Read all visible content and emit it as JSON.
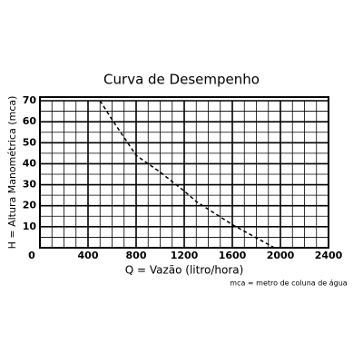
{
  "chart_data": {
    "type": "line",
    "title": "Curva de Desempenho",
    "x_label": "Q = Vazão (litro/hora)",
    "y_label": "H = Altura Manométrica (mca)",
    "note": "mca = metro de coluna de água",
    "x": [
      500,
      600,
      800,
      1000,
      1200,
      1300,
      1600,
      1950
    ],
    "series": [
      {
        "values": [
          70,
          61,
          44,
          36,
          27,
          22,
          11,
          0
        ],
        "color": "#000000"
      }
    ],
    "xlim": [
      0,
      2400
    ],
    "xticks": [
      0,
      400,
      800,
      1200,
      1600,
      2000,
      2400
    ],
    "ylim": [
      0,
      70
    ],
    "yticks": [
      0,
      10,
      20,
      30,
      40,
      50,
      60,
      70
    ],
    "grid": true,
    "line_style": "dashed"
  }
}
